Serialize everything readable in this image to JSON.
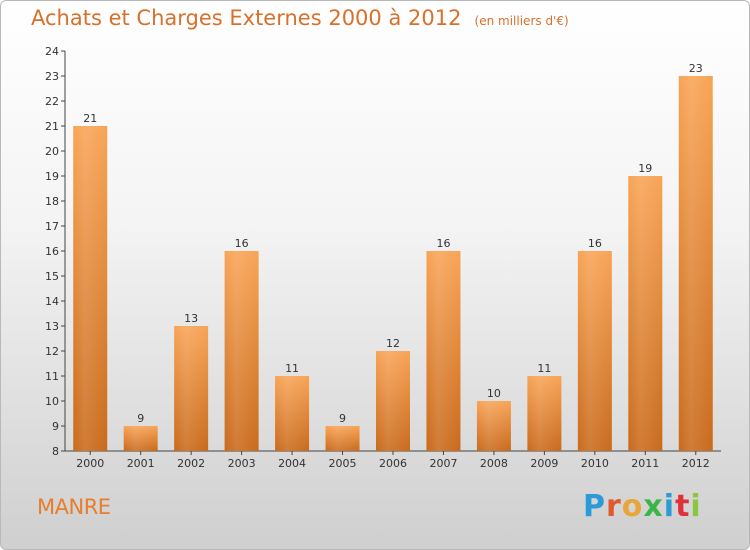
{
  "header": {
    "title": "Achats et Charges Externes 2000 à 2012",
    "subtitle": "(en milliers d'€)"
  },
  "footer": {
    "place": "MANRE",
    "brand": "Proxiti",
    "brand_letter_colors": [
      "#2a9bd6",
      "#e05a2b",
      "#e8a53a",
      "#3bb54a",
      "#2a9bd6",
      "#e0303a",
      "#8cc63f"
    ]
  },
  "chart_data": {
    "type": "bar",
    "categories": [
      "2000",
      "2001",
      "2002",
      "2003",
      "2004",
      "2005",
      "2006",
      "2007",
      "2008",
      "2009",
      "2010",
      "2011",
      "2012"
    ],
    "values": [
      21,
      9,
      13,
      16,
      11,
      9,
      12,
      16,
      10,
      11,
      16,
      19,
      23
    ],
    "ylim": [
      8,
      24
    ],
    "yticks": [
      8,
      9,
      10,
      11,
      12,
      13,
      14,
      15,
      16,
      17,
      18,
      19,
      20,
      21,
      22,
      23,
      24
    ],
    "grid": false,
    "bar_color": "#f0923e",
    "bar_color_dark": "#c96a1c"
  }
}
